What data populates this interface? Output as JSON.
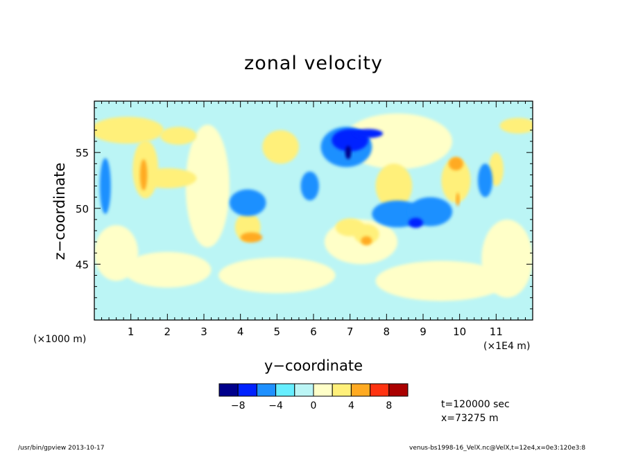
{
  "chart_data": {
    "type": "heatmap",
    "title": "zonal velocity",
    "xlabel": "y−coordinate",
    "ylabel": "z−coordinate",
    "x_unit_left": "(×1000 m)",
    "x_unit_right": "(×1E4 m)",
    "xlim": [
      0,
      12
    ],
    "ylim": [
      40,
      59.6
    ],
    "x_ticks": [
      1,
      2,
      3,
      4,
      5,
      6,
      7,
      8,
      9,
      10,
      11
    ],
    "y_ticks": [
      45,
      50,
      55
    ],
    "colorbar": {
      "colors": [
        "#00008b",
        "#0022ff",
        "#1e90ff",
        "#66eeff",
        "#bbf5f5",
        "#ffffc8",
        "#fff07a",
        "#ffaa22",
        "#ff3311",
        "#aa0000"
      ],
      "tick_labels": [
        "−8",
        "−4",
        "0",
        "4",
        "8"
      ]
    },
    "regions": [
      {
        "level": 1,
        "x": 2.0,
        "y": 44.5,
        "rx": 1.2,
        "ry": 1.6
      },
      {
        "level": 1,
        "x": 5.0,
        "y": 44.0,
        "rx": 1.6,
        "ry": 1.6
      },
      {
        "level": 1,
        "x": 9.5,
        "y": 43.5,
        "rx": 1.8,
        "ry": 1.8
      },
      {
        "level": 1,
        "x": 11.3,
        "y": 45.5,
        "rx": 0.7,
        "ry": 3.5
      },
      {
        "level": 1,
        "x": 0.6,
        "y": 46.0,
        "rx": 0.6,
        "ry": 2.5
      },
      {
        "level": 1,
        "x": 3.1,
        "y": 52.0,
        "rx": 0.6,
        "ry": 5.5
      },
      {
        "level": 1,
        "x": 7.3,
        "y": 47.0,
        "rx": 1.0,
        "ry": 2.0
      },
      {
        "level": 1,
        "x": 8.3,
        "y": 56.0,
        "rx": 1.5,
        "ry": 2.5
      },
      {
        "level": 2,
        "x": 0.9,
        "y": 57.0,
        "rx": 1.0,
        "ry": 1.2
      },
      {
        "level": 2,
        "x": 1.4,
        "y": 53.5,
        "rx": 0.35,
        "ry": 2.6
      },
      {
        "level": 2,
        "x": 2.0,
        "y": 52.7,
        "rx": 0.8,
        "ry": 0.9
      },
      {
        "level": 2,
        "x": 2.3,
        "y": 56.5,
        "rx": 0.5,
        "ry": 0.8
      },
      {
        "level": 2,
        "x": 11.6,
        "y": 57.4,
        "rx": 0.5,
        "ry": 0.7
      },
      {
        "level": 2,
        "x": 4.2,
        "y": 48.3,
        "rx": 0.35,
        "ry": 1.3
      },
      {
        "level": 2,
        "x": 5.1,
        "y": 55.5,
        "rx": 0.5,
        "ry": 1.5
      },
      {
        "level": 2,
        "x": 7.0,
        "y": 48.3,
        "rx": 0.4,
        "ry": 0.8
      },
      {
        "level": 2,
        "x": 8.2,
        "y": 52.0,
        "rx": 0.5,
        "ry": 2.0
      },
      {
        "level": 2,
        "x": 9.9,
        "y": 52.5,
        "rx": 0.4,
        "ry": 2.0
      },
      {
        "level": 2,
        "x": 11.0,
        "y": 53.5,
        "rx": 0.2,
        "ry": 1.5
      },
      {
        "level": 2,
        "x": 7.45,
        "y": 47.7,
        "rx": 0.35,
        "ry": 0.9
      },
      {
        "level": 3,
        "x": 1.35,
        "y": 53.0,
        "rx": 0.1,
        "ry": 1.4
      },
      {
        "level": 3,
        "x": 4.3,
        "y": 47.4,
        "rx": 0.3,
        "ry": 0.45
      },
      {
        "level": 3,
        "x": 7.45,
        "y": 47.1,
        "rx": 0.15,
        "ry": 0.4
      },
      {
        "level": 3,
        "x": 9.9,
        "y": 54.0,
        "rx": 0.2,
        "ry": 0.6
      },
      {
        "level": 3,
        "x": 9.95,
        "y": 50.8,
        "rx": 0.05,
        "ry": 0.6
      },
      {
        "level": -2,
        "x": 0.3,
        "y": 52.0,
        "rx": 0.15,
        "ry": 2.5
      },
      {
        "level": -2,
        "x": 4.2,
        "y": 50.5,
        "rx": 0.5,
        "ry": 1.2
      },
      {
        "level": -2,
        "x": 6.9,
        "y": 55.5,
        "rx": 0.7,
        "ry": 1.8
      },
      {
        "level": -2,
        "x": 8.3,
        "y": 49.5,
        "rx": 0.7,
        "ry": 1.2
      },
      {
        "level": -2,
        "x": 9.2,
        "y": 49.7,
        "rx": 0.6,
        "ry": 1.3
      },
      {
        "level": -2,
        "x": 10.7,
        "y": 52.5,
        "rx": 0.2,
        "ry": 1.5
      },
      {
        "level": -2,
        "x": 5.9,
        "y": 52.0,
        "rx": 0.25,
        "ry": 1.3
      },
      {
        "level": -3,
        "x": 7.0,
        "y": 56.1,
        "rx": 0.5,
        "ry": 1.0
      },
      {
        "level": -3,
        "x": 8.8,
        "y": 48.7,
        "rx": 0.2,
        "ry": 0.45
      },
      {
        "level": -3,
        "x": 7.5,
        "y": 56.7,
        "rx": 0.4,
        "ry": 0.4
      },
      {
        "level": -4,
        "x": 6.95,
        "y": 55.0,
        "rx": 0.08,
        "ry": 0.6
      }
    ]
  },
  "info": {
    "time": "t=120000 sec",
    "x_position": "x=73275 m"
  },
  "footer": {
    "left": "/usr/bin/gpview   2013-10-17",
    "right": "venus-bs1998-16_VelX.nc@VelX,t=12e4,x=0e3:120e3:8"
  }
}
